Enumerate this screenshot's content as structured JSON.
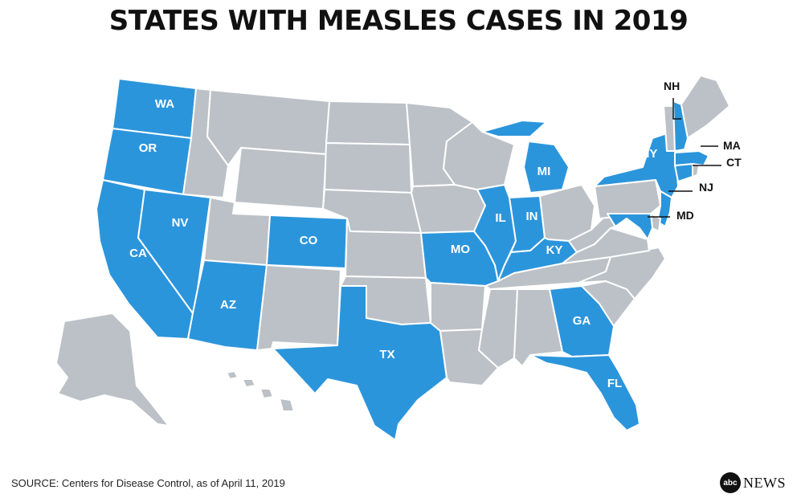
{
  "title": "STATES WITH MEASLES CASES IN 2019",
  "source": "SOURCE: Centers for Disease Control, as of April 11, 2019",
  "brand": {
    "logo_text": "abc",
    "name": "NEWS"
  },
  "colors": {
    "affected": "#2b95dc",
    "unaffected": "#bcc1c7",
    "border": "#ffffff",
    "text": "#111111"
  },
  "legend": {
    "affected_meaning": "state with measles cases in 2019"
  },
  "states_with_cases": [
    {
      "code": "WA"
    },
    {
      "code": "OR"
    },
    {
      "code": "CA"
    },
    {
      "code": "NV"
    },
    {
      "code": "AZ"
    },
    {
      "code": "CO"
    },
    {
      "code": "TX"
    },
    {
      "code": "MO"
    },
    {
      "code": "IL"
    },
    {
      "code": "IN"
    },
    {
      "code": "MI"
    },
    {
      "code": "KY"
    },
    {
      "code": "GA"
    },
    {
      "code": "FL"
    },
    {
      "code": "NY"
    },
    {
      "code": "NH"
    },
    {
      "code": "MA"
    },
    {
      "code": "CT"
    },
    {
      "code": "NJ"
    },
    {
      "code": "MD"
    }
  ],
  "callout_labels": [
    "NH",
    "MA",
    "CT",
    "NJ",
    "MD"
  ]
}
